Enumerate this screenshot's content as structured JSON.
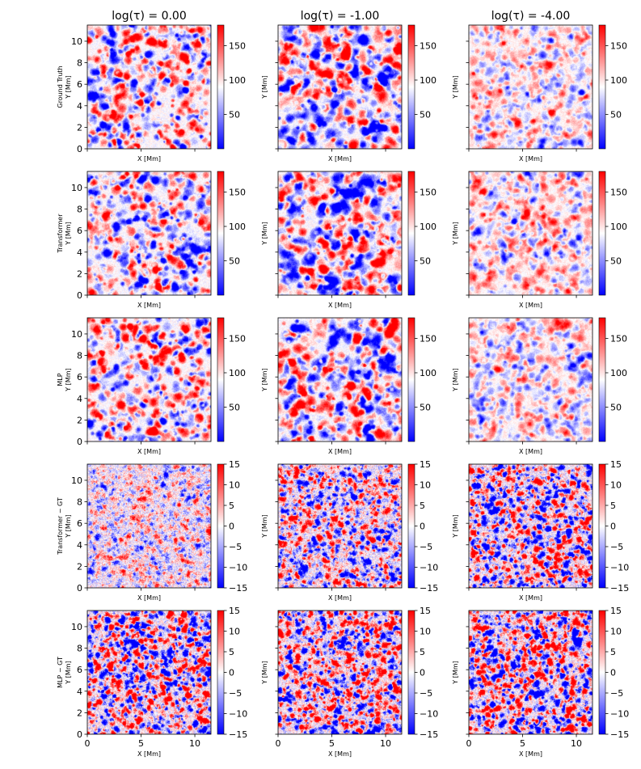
{
  "chart_data": {
    "type": "heatmap",
    "title": "",
    "columns": [
      {
        "title": "log(τ) = 0.00"
      },
      {
        "title": "log(τ) = -1.00"
      },
      {
        "title": "log(τ) = -4.00"
      }
    ],
    "rows": [
      {
        "label": "Ground Truth",
        "kind": "field",
        "vmin": 0,
        "vmax": 180,
        "cbar_ticks": [
          50,
          100,
          150
        ]
      },
      {
        "label": "Transformer",
        "kind": "field",
        "vmin": 0,
        "vmax": 180,
        "cbar_ticks": [
          50,
          100,
          150
        ]
      },
      {
        "label": "MLP",
        "kind": "field",
        "vmin": 0,
        "vmax": 180,
        "cbar_ticks": [
          50,
          100,
          150
        ]
      },
      {
        "label": "Transformer − GT",
        "kind": "diff",
        "vmin": -15,
        "vmax": 15,
        "cbar_ticks": [
          -15,
          -10,
          -5,
          0,
          5,
          10,
          15
        ]
      },
      {
        "label": "MLP − GT",
        "kind": "diff",
        "vmin": -15,
        "vmax": 15,
        "cbar_ticks": [
          -15,
          -10,
          -5,
          0,
          5,
          10,
          15
        ]
      }
    ],
    "xlabel": "X [Mm]",
    "ylabel": "Y [Mm]",
    "xlim": [
      0,
      11.5
    ],
    "ylim": [
      0,
      11.5
    ],
    "x_ticks": [
      0,
      5,
      10
    ],
    "y_ticks": [
      0,
      2,
      4,
      6,
      8,
      10
    ],
    "colormap": "bwr",
    "colormap_colors": {
      "low": "#0000ff",
      "mid": "#ffffff",
      "high": "#ff0000"
    }
  }
}
